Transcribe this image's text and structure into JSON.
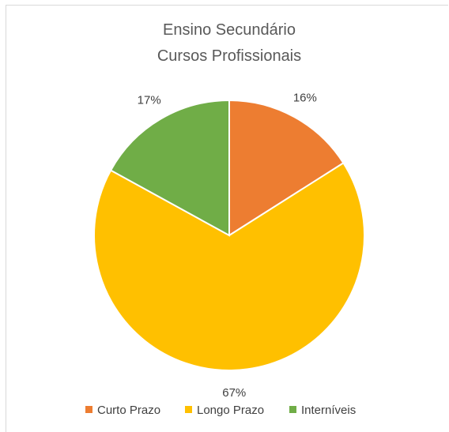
{
  "chart_data": {
    "type": "pie",
    "title": [
      "Ensino Secundário",
      "Cursos Profissionais"
    ],
    "categories": [
      "Curto Prazo",
      "Longo Prazo",
      "Interníveis"
    ],
    "values": [
      16,
      67,
      17
    ],
    "data_labels": [
      "16%",
      "67%",
      "17%"
    ],
    "colors": [
      "#ED7D31",
      "#FFC000",
      "#70AD47"
    ],
    "legend_position": "bottom"
  }
}
